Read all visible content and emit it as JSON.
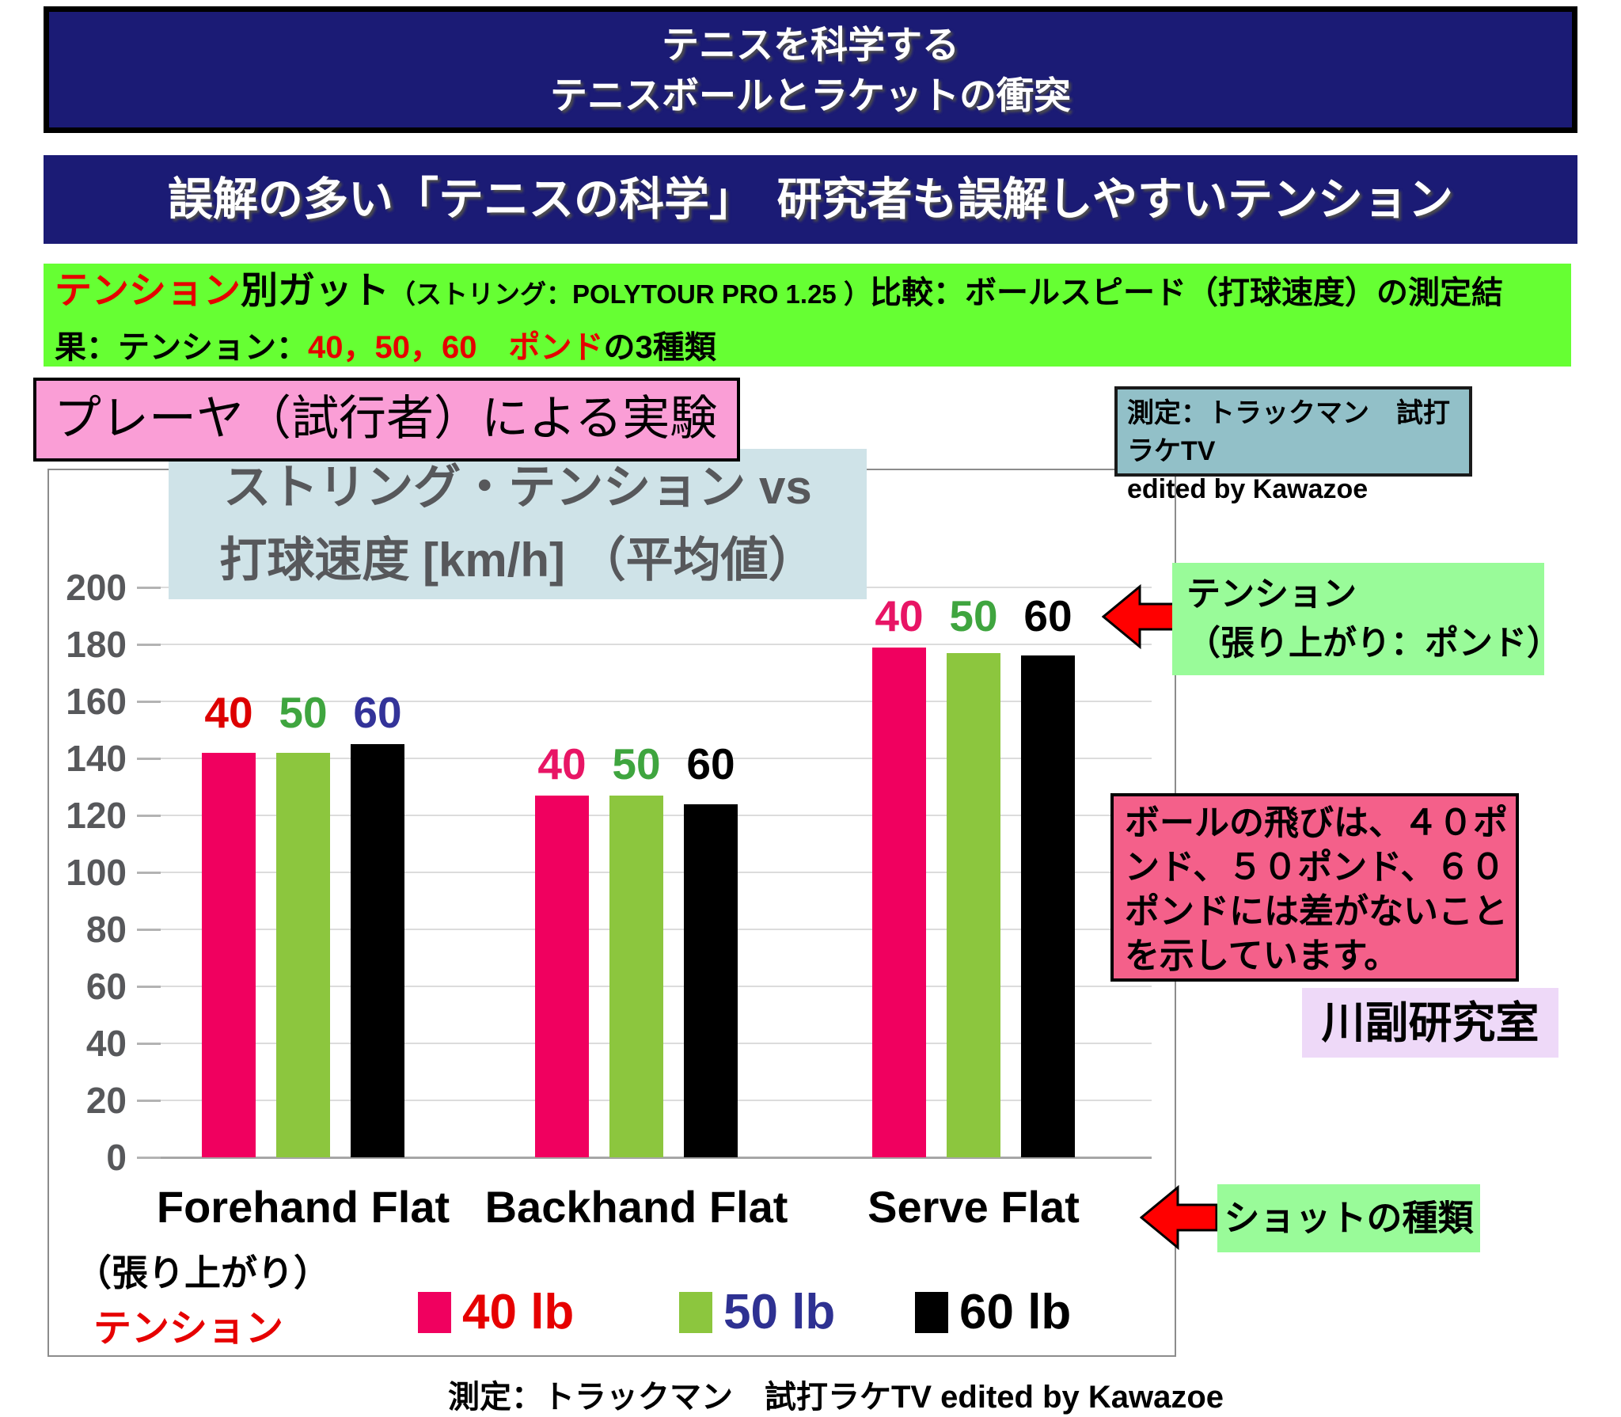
{
  "header": {
    "title_line1": "テニスを科学する",
    "title_line2": "テニスボールとラケットの衝突",
    "subtitle": "誤解の多い「テニスの科学」　研究者も誤解しやすいテンション"
  },
  "description": {
    "l1_red": "テンション",
    "l1_black1": "別ガット",
    "l1_paren": "（ストリング：POLYTOUR PRO 1.25 ）",
    "l1_black2": "比較：ボールスピード（打球速度）の測定結",
    "l2_black1": "果：テンション：",
    "l2_red": "40，50，60　ポンド",
    "l2_black2": "の3種類"
  },
  "experiment_label": "プレーヤ（試行者）による実験",
  "measurement": {
    "line1": "測定：トラックマン　試打ラケTV",
    "line2": "edited by Kawazoe"
  },
  "chart_data": {
    "type": "bar",
    "title_line1": "ストリング・テンション vs",
    "title_line2": "打球速度  [km/h] （平均値）",
    "ylabel": "打球速度 [km/h]",
    "categories": [
      "Forehand Flat",
      "Backhand Flat",
      "Serve Flat"
    ],
    "series": [
      {
        "name": "40 lb",
        "values": [
          142,
          127,
          179
        ],
        "color": "#f0005f",
        "label_colors": [
          "#dd0000",
          "#e81565",
          "#e81565"
        ]
      },
      {
        "name": "50 lb",
        "values": [
          142,
          127,
          177
        ],
        "color": "#8cc63e",
        "label_colors": [
          "#3fa53f",
          "#3fa53f",
          "#3fa53f"
        ]
      },
      {
        "name": "60 lb",
        "values": [
          145,
          124,
          176
        ],
        "color": "#000000",
        "label_colors": [
          "#333399",
          "#000000",
          "#000000"
        ]
      }
    ],
    "bar_group_labels": [
      "40",
      "50",
      "60"
    ],
    "ylim": [
      0,
      200
    ],
    "ytick_step": 20,
    "grid": true,
    "legend_position": "bottom"
  },
  "axis_notes": {
    "line1": "（張り上がり）",
    "line2": "テンション"
  },
  "legend": {
    "items": [
      {
        "label": "40 lb",
        "color": "#f0005f",
        "text_color": "#e60000"
      },
      {
        "label": "50 lb",
        "color": "#8cc63e",
        "text_color": "#2e3192"
      },
      {
        "label": "60 lb",
        "color": "#000000",
        "text_color": "#000000"
      }
    ]
  },
  "annotations": {
    "tension_note_line1": "テンション",
    "tension_note_line2": "（張り上がり：ポンド）",
    "shot_type_note": "ショットの種類",
    "conclusion_lines": [
      "ボールの飛びは、４０ポ",
      "ンド、５０ポンド、６０",
      "ポンドには差がないこと",
      "を示しています。"
    ],
    "lab_name": "川副研究室"
  },
  "footer": {
    "caption": "測定：トラックマン　試打ラケTV edited by Kawazoe"
  },
  "colors": {
    "banner_navy": "#1b1b75",
    "description_green": "#66ff33",
    "experiment_pink": "#fa9ed6",
    "measurement_teal": "#92c0c8",
    "chart_title_blue": "#cfe3e8",
    "annotation_green": "#99fb99",
    "conclusion_rose": "#f4608a",
    "lab_lavender": "#eed9f8",
    "arrow_red": "#ff0000"
  }
}
